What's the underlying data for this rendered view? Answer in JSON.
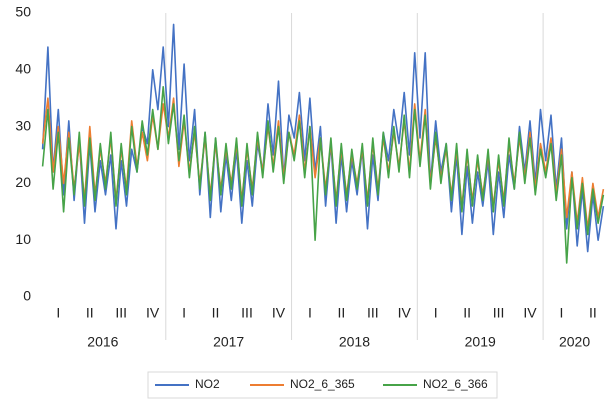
{
  "chart_data": {
    "type": "line",
    "categories": [
      null,
      null,
      null,
      "I",
      null,
      null,
      null,
      null,
      null,
      "II",
      null,
      null,
      null,
      null,
      null,
      "III",
      null,
      null,
      null,
      null,
      null,
      "IV",
      null,
      null,
      null,
      null,
      null,
      "I",
      null,
      null,
      null,
      null,
      null,
      "II",
      null,
      null,
      null,
      null,
      null,
      "III",
      null,
      null,
      null,
      null,
      null,
      "IV",
      null,
      null,
      null,
      null,
      null,
      "I",
      null,
      null,
      null,
      null,
      null,
      "II",
      null,
      null,
      null,
      null,
      null,
      "III",
      null,
      null,
      null,
      null,
      null,
      "IV",
      null,
      null,
      null,
      null,
      null,
      "I",
      null,
      null,
      null,
      null,
      null,
      "II",
      null,
      null,
      null,
      null,
      null,
      "III",
      null,
      null,
      null,
      null,
      null,
      "IV",
      null,
      null,
      null,
      null,
      null,
      "I",
      null,
      null,
      null,
      null,
      null,
      "II",
      null,
      null
    ],
    "years": [
      "2016",
      "2017",
      "2018",
      "2019",
      "2020"
    ],
    "series": [
      {
        "name": "NO2",
        "color": "#4472c4",
        "values": [
          26,
          44,
          22,
          33,
          18,
          31,
          17,
          28,
          13,
          27,
          15,
          24,
          18,
          25,
          12,
          24,
          16,
          26,
          22,
          30,
          27,
          40,
          33,
          44,
          30,
          48,
          26,
          41,
          24,
          33,
          18,
          29,
          14,
          28,
          15,
          25,
          17,
          26,
          13,
          24,
          16,
          27,
          22,
          34,
          25,
          38,
          21,
          32,
          28,
          36,
          24,
          35,
          22,
          30,
          16,
          27,
          13,
          25,
          15,
          24,
          18,
          26,
          12,
          25,
          17,
          29,
          24,
          33,
          27,
          36,
          25,
          43,
          28,
          43,
          20,
          31,
          22,
          27,
          15,
          25,
          11,
          23,
          13,
          22,
          16,
          24,
          11,
          22,
          14,
          25,
          19,
          30,
          22,
          31,
          20,
          33,
          24,
          32,
          19,
          28,
          12,
          22,
          9,
          19,
          8,
          18,
          10,
          16
        ]
      },
      {
        "name": "NO2_6_365",
        "color": "#ed7d31",
        "values": [
          27,
          35,
          22,
          30,
          20,
          29,
          19,
          27,
          17,
          30,
          18,
          26,
          20,
          28,
          17,
          26,
          19,
          31,
          23,
          29,
          24,
          32,
          26,
          34,
          28,
          35,
          23,
          31,
          22,
          29,
          20,
          28,
          18,
          27,
          19,
          26,
          20,
          27,
          17,
          26,
          19,
          28,
          22,
          30,
          23,
          31,
          21,
          29,
          25,
          32,
          22,
          30,
          21,
          28,
          19,
          27,
          17,
          26,
          18,
          25,
          20,
          26,
          17,
          27,
          19,
          28,
          22,
          29,
          23,
          31,
          22,
          34,
          24,
          33,
          20,
          28,
          21,
          26,
          18,
          26,
          16,
          25,
          17,
          24,
          18,
          25,
          16,
          24,
          17,
          27,
          20,
          28,
          21,
          29,
          19,
          27,
          22,
          28,
          18,
          26,
          14,
          22,
          13,
          21,
          12,
          20,
          14,
          19
        ]
      },
      {
        "name": "NO2_6_366",
        "color": "#47a348",
        "values": [
          23,
          33,
          19,
          29,
          15,
          28,
          18,
          29,
          16,
          28,
          17,
          27,
          19,
          29,
          16,
          27,
          18,
          30,
          22,
          31,
          25,
          33,
          26,
          37,
          27,
          34,
          24,
          32,
          21,
          30,
          19,
          29,
          17,
          28,
          18,
          27,
          19,
          28,
          16,
          27,
          18,
          29,
          21,
          31,
          22,
          30,
          20,
          29,
          24,
          31,
          21,
          30,
          10,
          28,
          18,
          28,
          16,
          27,
          17,
          26,
          19,
          27,
          16,
          28,
          18,
          29,
          21,
          30,
          22,
          32,
          21,
          33,
          23,
          32,
          19,
          29,
          20,
          27,
          17,
          27,
          15,
          26,
          16,
          25,
          17,
          26,
          15,
          25,
          16,
          28,
          19,
          29,
          20,
          28,
          18,
          26,
          21,
          27,
          17,
          25,
          6,
          21,
          12,
          20,
          11,
          19,
          13,
          18
        ]
      }
    ],
    "ylim": [
      0,
      50
    ],
    "yticks": [
      0,
      10,
      20,
      30,
      40,
      50
    ],
    "legend": "bottom"
  }
}
